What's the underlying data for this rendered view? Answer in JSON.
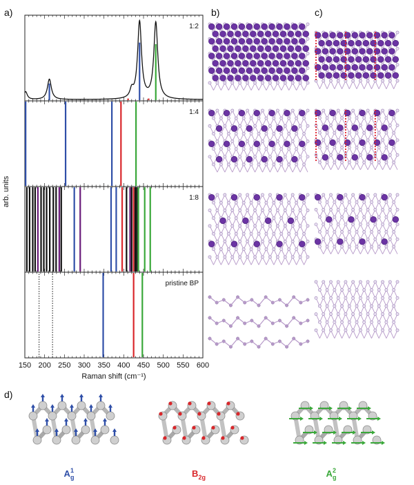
{
  "labels": {
    "panel_a": "a)",
    "panel_b": "b)",
    "panel_c": "c)",
    "panel_d": "d)",
    "ylabel": "arb. units",
    "xlabel": "Raman shift (cm⁻¹)"
  },
  "colors": {
    "blue": "#2f4fa8",
    "red": "#d9272b",
    "green": "#3aa83a",
    "black": "#111111",
    "purple": "#6a1b7a",
    "atom_p": "#b79ac9",
    "atom_k": "#6b34a3",
    "atom_dot": "#e0202a"
  },
  "chart_data": {
    "type": "line",
    "xlabel": "Raman shift (cm⁻¹)",
    "ylabel": "arb. units",
    "xlim": [
      150,
      600
    ],
    "xticks": [
      150,
      200,
      250,
      300,
      350,
      400,
      450,
      500,
      550,
      600
    ],
    "panels": [
      {
        "label": "1:2",
        "spectrum": {
          "peaks": [
            {
              "x": 152,
              "h": 0.1,
              "w": 5
            },
            {
              "x": 212,
              "h": 0.26,
              "w": 6
            },
            {
              "x": 420,
              "h": 0.1,
              "w": 5
            },
            {
              "x": 440,
              "h": 0.98,
              "w": 6
            },
            {
              "x": 481,
              "h": 0.97,
              "w": 6
            }
          ]
        },
        "lines": [
          {
            "x": 212,
            "color": "blue",
            "height": 0.22
          },
          {
            "x": 411,
            "color": "red",
            "height": 0.03
          },
          {
            "x": 440,
            "color": "blue",
            "height": 0.74
          },
          {
            "x": 463,
            "color": "red",
            "height": 0.03
          },
          {
            "x": 481,
            "color": "green",
            "height": 0.72
          }
        ]
      },
      {
        "label": "1:4",
        "lines": [
          {
            "x": 152,
            "color": "blue"
          },
          {
            "x": 253,
            "color": "blue"
          },
          {
            "x": 370,
            "color": "blue"
          },
          {
            "x": 393,
            "color": "red"
          },
          {
            "x": 431,
            "color": "green"
          }
        ]
      },
      {
        "label": "1:8",
        "lines": [
          {
            "x": 155,
            "color": "black"
          },
          {
            "x": 162,
            "color": "black"
          },
          {
            "x": 170,
            "color": "black"
          },
          {
            "x": 176,
            "color": "black"
          },
          {
            "x": 183,
            "color": "purple"
          },
          {
            "x": 191,
            "color": "black"
          },
          {
            "x": 198,
            "color": "black"
          },
          {
            "x": 205,
            "color": "black"
          },
          {
            "x": 213,
            "color": "black"
          },
          {
            "x": 222,
            "color": "black"
          },
          {
            "x": 229,
            "color": "black"
          },
          {
            "x": 237,
            "color": "purple"
          },
          {
            "x": 242,
            "color": "black"
          },
          {
            "x": 275,
            "color": "blue"
          },
          {
            "x": 290,
            "color": "purple"
          },
          {
            "x": 368,
            "color": "blue"
          },
          {
            "x": 381,
            "color": "blue"
          },
          {
            "x": 396,
            "color": "red"
          },
          {
            "x": 407,
            "color": "black"
          },
          {
            "x": 416,
            "color": "purple"
          },
          {
            "x": 420,
            "color": "black"
          },
          {
            "x": 425,
            "color": "red"
          },
          {
            "x": 429,
            "color": "black"
          },
          {
            "x": 433,
            "color": "black"
          },
          {
            "x": 437,
            "color": "green"
          },
          {
            "x": 453,
            "color": "green"
          },
          {
            "x": 467,
            "color": "green"
          }
        ]
      },
      {
        "label": "pristine BP",
        "lines": [
          {
            "x": 186,
            "color": "black",
            "style": "dotted"
          },
          {
            "x": 220,
            "color": "black",
            "style": "dotted"
          },
          {
            "x": 348,
            "color": "blue"
          },
          {
            "x": 425,
            "color": "red"
          },
          {
            "x": 447,
            "color": "green"
          }
        ]
      }
    ]
  },
  "structures": {
    "rows": [
      "1:2",
      "1:4",
      "1:8",
      "pristine BP"
    ],
    "b": [
      {
        "k_atoms": "dense"
      },
      {
        "k_atoms": "medium"
      },
      {
        "k_atoms": "sparse"
      },
      {
        "k_atoms": "none"
      }
    ],
    "c": [
      {
        "k_atoms": "dense",
        "dotted_columns": true
      },
      {
        "k_atoms": "medium",
        "dotted_columns": true
      },
      {
        "k_atoms": "sparse",
        "dotted_columns": false
      },
      {
        "k_atoms": "none",
        "dotted_columns": false
      }
    ]
  },
  "modes": [
    {
      "name": "A",
      "sup": "1",
      "sub": "g",
      "color": "blue",
      "arrows": "vertical"
    },
    {
      "name": "B",
      "sup": "",
      "sub": "2g",
      "color": "red",
      "arrows": "dots"
    },
    {
      "name": "A",
      "sup": "2",
      "sub": "g",
      "color": "green",
      "arrows": "horizontal"
    }
  ]
}
